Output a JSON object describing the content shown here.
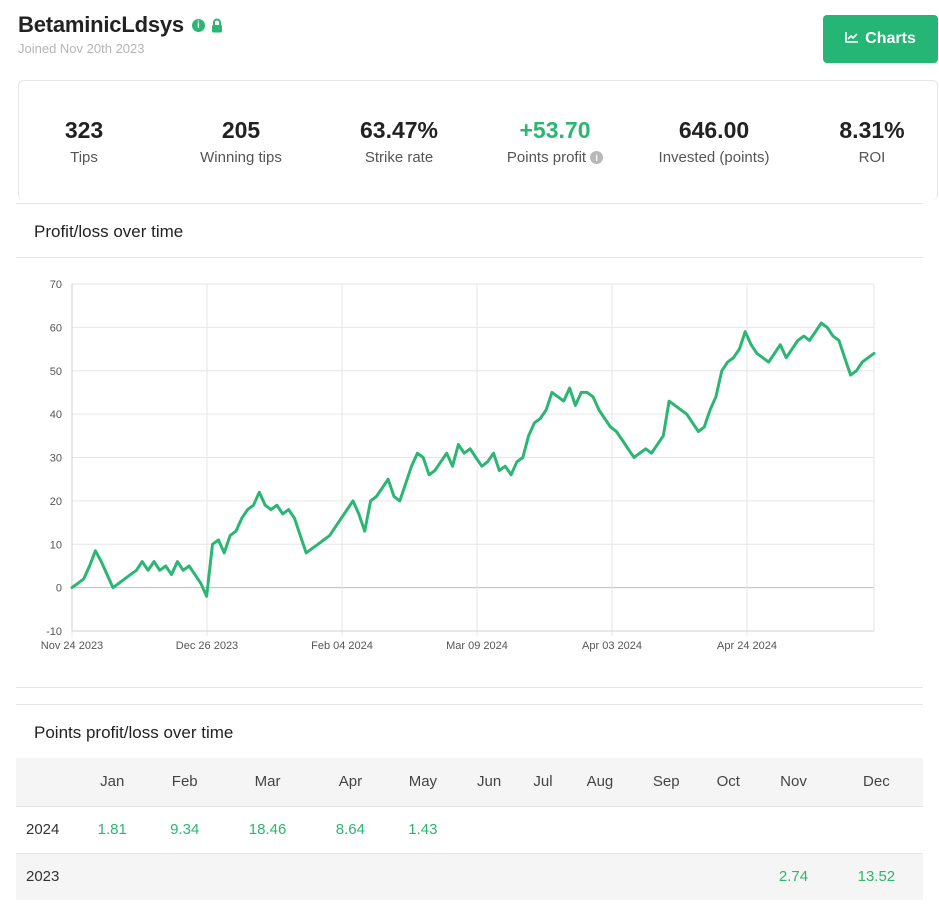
{
  "profile": {
    "username": "BetaminicLdsys",
    "joined": "Joined Nov 20th 2023",
    "icons": [
      "info-icon",
      "lock-icon"
    ]
  },
  "charts_button": {
    "label": "Charts",
    "icon": "chart-line-icon"
  },
  "stats": [
    {
      "value": "323",
      "label": "Tips"
    },
    {
      "value": "205",
      "label": "Winning tips"
    },
    {
      "value": "63.47%",
      "label": "Strike rate"
    },
    {
      "value": "+53.70",
      "label": "Points profit",
      "green": true,
      "info": true
    },
    {
      "value": "646.00",
      "label": "Invested (points)"
    },
    {
      "value": "8.31%",
      "label": "ROI"
    }
  ],
  "colors": {
    "accent": "#2bb673",
    "button": "#25b574",
    "grid": "#e6e6e6"
  },
  "profit_chart": {
    "title": "Profit/loss over time"
  },
  "chart_data": {
    "type": "line",
    "title": "",
    "xlabel": "",
    "ylabel": "",
    "ylim": [
      -10,
      70
    ],
    "yticks": [
      -10,
      0,
      10,
      20,
      30,
      40,
      50,
      60,
      70
    ],
    "xtick_labels": [
      "Nov 24 2023",
      "Dec 26 2023",
      "Feb 04 2024",
      "Mar 09 2024",
      "Apr 03 2024",
      "Apr 24 2024"
    ],
    "grid": true,
    "legend": "none",
    "series": [
      {
        "color": "#2bb673",
        "values": [
          0,
          1,
          2,
          5,
          8.5,
          6,
          3,
          0,
          1,
          2,
          3,
          4,
          6,
          4,
          6,
          4,
          5,
          3,
          6,
          4,
          5,
          3,
          1,
          -2,
          10,
          11,
          8,
          12,
          13,
          16,
          18,
          19,
          22,
          19,
          18,
          19,
          17,
          18,
          16,
          12,
          8,
          9,
          10,
          11,
          12,
          14,
          16,
          18,
          20,
          17,
          13,
          20,
          21,
          23,
          25,
          21,
          20,
          24,
          28,
          31,
          30,
          26,
          27,
          29,
          31,
          28,
          33,
          31,
          32,
          30,
          28,
          29,
          31,
          27,
          28,
          26,
          29,
          30,
          35,
          38,
          39,
          41,
          45,
          44,
          43,
          46,
          42,
          45,
          45,
          44,
          41,
          39,
          37,
          36,
          34,
          32,
          30,
          31,
          32,
          31,
          33,
          35,
          43,
          42,
          41,
          40,
          38,
          36,
          37,
          41,
          44,
          50,
          52,
          53,
          55,
          59,
          56,
          54,
          53,
          52,
          54,
          56,
          53,
          55,
          57,
          58,
          57,
          59,
          61,
          60,
          58,
          57,
          53,
          49,
          50,
          52,
          53,
          54
        ]
      }
    ]
  },
  "pl_table": {
    "title": "Points profit/loss over time",
    "months": [
      "Jan",
      "Feb",
      "Mar",
      "Apr",
      "May",
      "Jun",
      "Jul",
      "Aug",
      "Sep",
      "Oct",
      "Nov",
      "Dec"
    ],
    "rows": [
      {
        "year": "2024",
        "values": [
          "1.81",
          "9.34",
          "18.46",
          "8.64",
          "1.43",
          "",
          "",
          "",
          "",
          "",
          "",
          ""
        ]
      },
      {
        "year": "2023",
        "values": [
          "",
          "",
          "",
          "",
          "",
          "",
          "",
          "",
          "",
          "",
          "2.74",
          "13.52"
        ]
      }
    ]
  }
}
